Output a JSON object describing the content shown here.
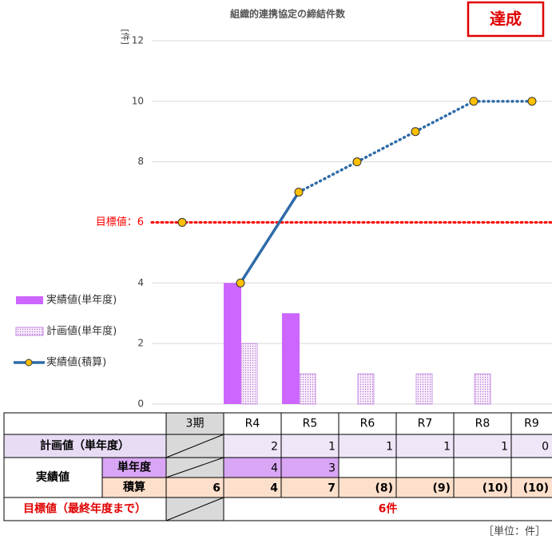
{
  "chart_data": {
    "type": "bar_line",
    "title": "組織的連携協定の締結件数",
    "y_unit": "[件]",
    "categories": [
      "3期",
      "R4",
      "R5",
      "R6",
      "R7",
      "R8",
      "R9"
    ],
    "ylim": [
      0,
      12
    ],
    "yticks": [
      0,
      2,
      4,
      {
        "value": 6,
        "label": "目標値：6"
      },
      8,
      10,
      12
    ],
    "grid": true,
    "legend": "left",
    "target_line": {
      "value": 6,
      "color": "#ff0000"
    },
    "badge": "達成",
    "series": [
      {
        "name": "実績値(単年度)",
        "kind": "bar",
        "color": "#cc66ff",
        "values": [
          null,
          4,
          3,
          null,
          null,
          null,
          null
        ]
      },
      {
        "name": "計画値(単年度)",
        "kind": "bar",
        "pattern": "dots",
        "color": "#c080e0",
        "values": [
          null,
          2,
          1,
          1,
          1,
          1,
          0
        ]
      },
      {
        "name": "実績値(積算)",
        "kind": "line",
        "color": "#2e6ba8",
        "marker_color": "#ffc000",
        "values": [
          6,
          4,
          7,
          8,
          9,
          10,
          10
        ],
        "segment_styles": [
          null,
          "solid",
          "dotted",
          "dotted",
          "dotted",
          "dotted"
        ]
      }
    ]
  },
  "table": {
    "columns": [
      "3期",
      "R4",
      "R5",
      "R6",
      "R7",
      "R8",
      "R9"
    ],
    "plan_label": "計画値（単年度）",
    "plan": [
      null,
      2,
      1,
      1,
      1,
      1,
      0
    ],
    "actual_label": "実績値",
    "single_label": "単年度",
    "single": [
      null,
      4,
      3,
      null,
      null,
      null,
      null
    ],
    "cumulative_label": "積算",
    "cumulative": [
      6,
      4,
      7,
      "(8)",
      "(9)",
      "(10)",
      "(10)"
    ],
    "target_label": "目標値（最終年度まで）",
    "target": "6件",
    "unit": "［単位：件］"
  }
}
